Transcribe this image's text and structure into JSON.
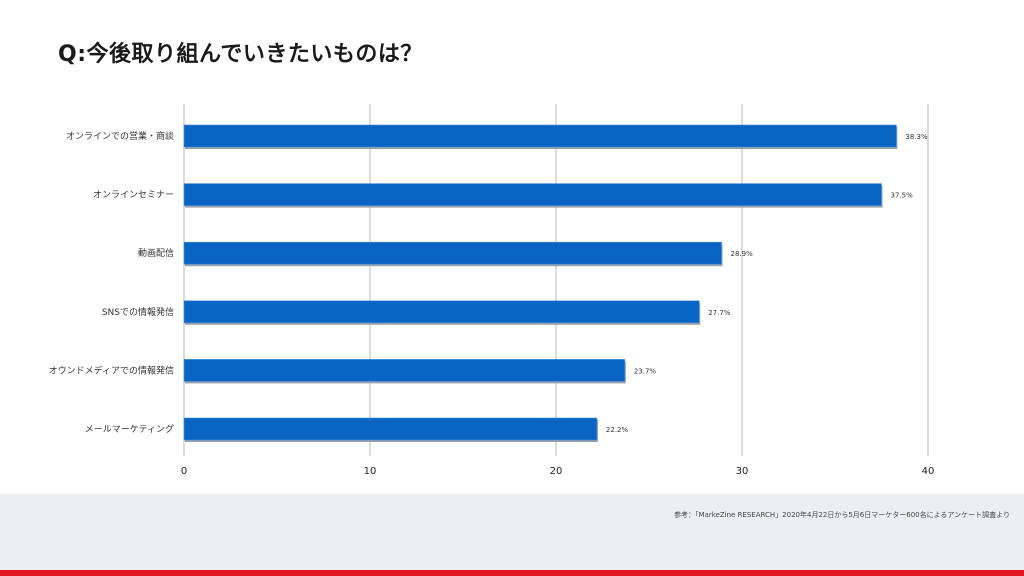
{
  "title": "Q:今後取り組んでいきたいものは？",
  "footer": {
    "source": "参考：「MarkeZine RESEARCH」2020年4月22日から5月6日マーケター600名によるアンケート調査より"
  },
  "colors": {
    "bar": "#0a64c3",
    "bar_shadow": "#9aa3ad",
    "grid": "#b9b9b9",
    "accent_red": "#e0151e",
    "footer_bg": "#eceef2"
  },
  "chart_data": {
    "type": "bar",
    "orientation": "horizontal",
    "categories": [
      "オンラインでの営業・商談",
      "オンラインセミナー",
      "動画配信",
      "SNSでの情報発信",
      "オウンドメディアでの情報発信",
      "メールマーケティング"
    ],
    "values": [
      38.3,
      37.5,
      28.9,
      27.7,
      23.7,
      22.2
    ],
    "value_labels": [
      "38.3%",
      "37.5%",
      "28.9%",
      "27.7%",
      "23.7%",
      "22.2%"
    ],
    "xlim": [
      0,
      40
    ],
    "xticks": [
      "0",
      "10",
      "20",
      "30",
      "40"
    ],
    "grid": true,
    "xlabel": "",
    "ylabel": ""
  }
}
